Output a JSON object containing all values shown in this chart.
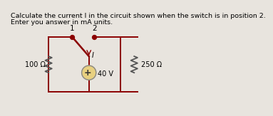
{
  "title_line1": "Calculate the current I in the circuit shown when the switch is in position 2.",
  "title_line2": "Enter you answer in mA units.",
  "bg_color": "#e8e4de",
  "text_color": "#000000",
  "wire_color": "#8B0000",
  "resistor_color": "#555555",
  "battery_fill": "#e8d080",
  "title_fontsize": 6.8,
  "label_fontsize": 7.0,
  "resistor1_label": "100 Ω",
  "resistor2_label": "250 Ω",
  "battery_label": "40 V",
  "switch_pos1": "1",
  "switch_pos2": "2",
  "current_label": "I"
}
